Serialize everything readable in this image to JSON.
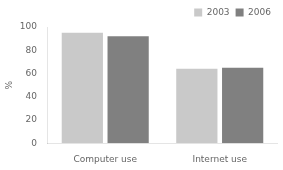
{
  "chart_data": {
    "type": "bar",
    "categories": [
      "Computer use",
      "Internet use"
    ],
    "series": [
      {
        "name": "2003",
        "color": "#c9c9c9",
        "values": [
          95,
          64
        ]
      },
      {
        "name": "2006",
        "color": "#808080",
        "values": [
          92,
          65
        ]
      }
    ],
    "ylabel": "%",
    "ylim": [
      0,
      100
    ],
    "yticks": [
      0,
      20,
      40,
      60,
      80,
      100
    ],
    "grid": false,
    "legend": "upper right"
  }
}
